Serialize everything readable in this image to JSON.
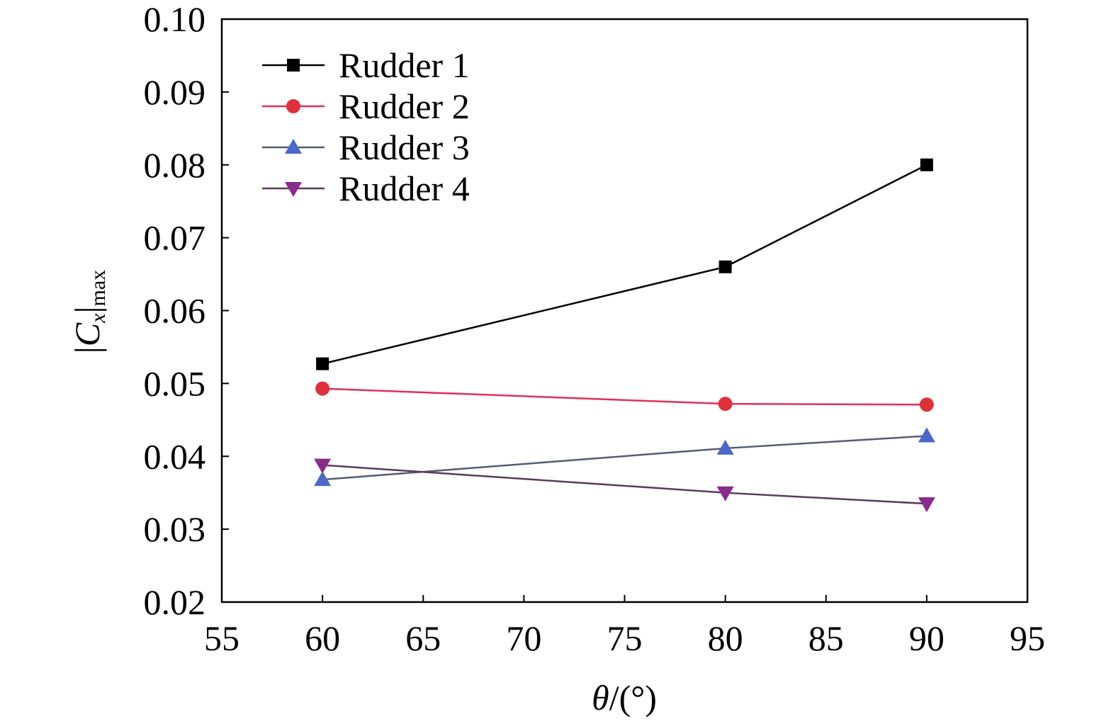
{
  "chart_data": {
    "type": "line",
    "xlabel": {
      "symbol": "θ",
      "rest": "/(°)"
    },
    "ylabel": {
      "open": "|",
      "symbol": "C",
      "sub": "x",
      "close": "|",
      "subscript": "max"
    },
    "xlim": [
      55,
      95
    ],
    "ylim": [
      0.02,
      0.1
    ],
    "x_ticks": [
      55,
      60,
      65,
      70,
      75,
      80,
      85,
      90,
      95
    ],
    "y_ticks": [
      "0.02",
      "0.03",
      "0.04",
      "0.05",
      "0.06",
      "0.07",
      "0.08",
      "0.09",
      "0.10"
    ],
    "grid": false,
    "legend_position": "top-left",
    "x": [
      60,
      80,
      90
    ],
    "series": [
      {
        "name": "Rudder 1",
        "values": [
          0.0527,
          0.066,
          0.08
        ],
        "color": "#000000",
        "line_color": "#000000",
        "marker": "square"
      },
      {
        "name": "Rudder 2",
        "values": [
          0.0493,
          0.0472,
          0.0471
        ],
        "color": "#e0303c",
        "line_color": "#e0305a",
        "marker": "circle"
      },
      {
        "name": "Rudder 3",
        "values": [
          0.0368,
          0.0411,
          0.0428
        ],
        "color": "#4a68c8",
        "line_color": "#555a78",
        "marker": "triangle-up"
      },
      {
        "name": "Rudder 4",
        "values": [
          0.0388,
          0.035,
          0.0335
        ],
        "color": "#8a2a8c",
        "line_color": "#5a3a5a",
        "marker": "triangle-down"
      }
    ]
  }
}
